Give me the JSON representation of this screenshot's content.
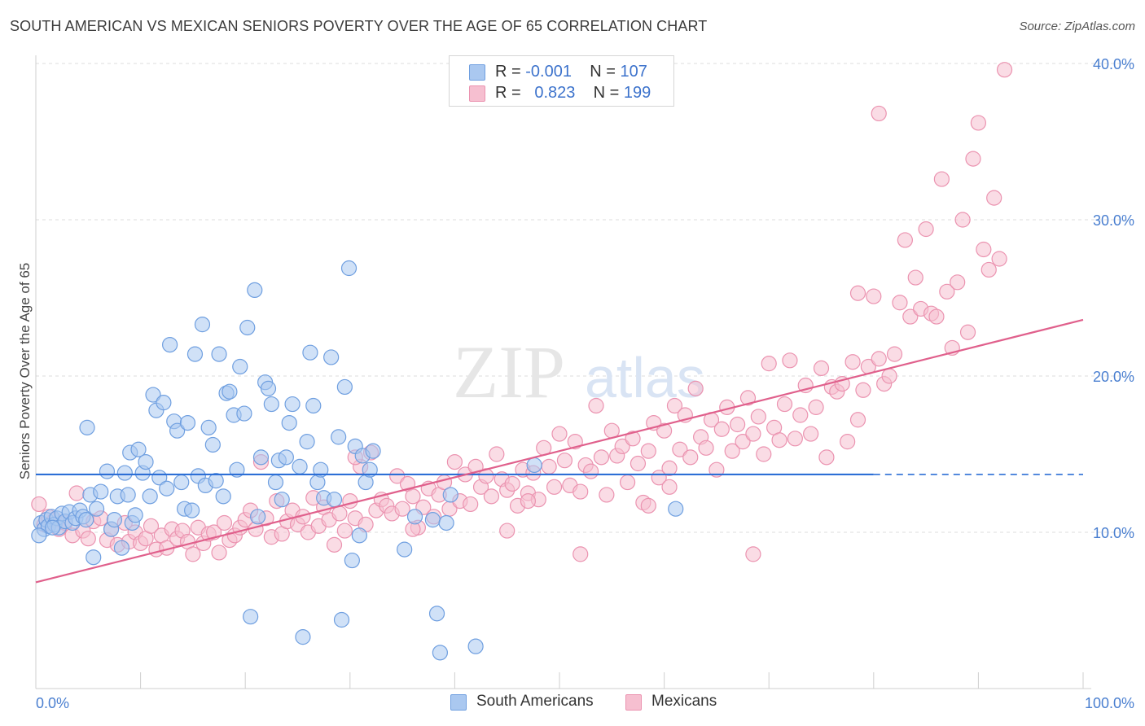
{
  "header": {
    "title": "SOUTH AMERICAN VS MEXICAN SENIORS POVERTY OVER THE AGE OF 65 CORRELATION CHART",
    "source": "Source: ZipAtlas.com"
  },
  "watermark": {
    "part1": "ZIP",
    "part2": "atlas"
  },
  "legend": {
    "south_american": {
      "r_label": "R =",
      "r_value": "-0.001",
      "n_label": "N =",
      "n_value": "107"
    },
    "mexican": {
      "r_label": "R =",
      "r_value": "0.823",
      "n_label": "N =",
      "n_value": "199"
    }
  },
  "bottom_legend": {
    "south_american": "South Americans",
    "mexican": "Mexicans"
  },
  "colors": {
    "blue_fill": "#aac8f0",
    "blue_stroke": "#6f9fe0",
    "blue_line": "#2d6fd6",
    "pink_fill": "#f6bfd0",
    "pink_stroke": "#eb93b0",
    "pink_line": "#e0608c",
    "tick_text": "#4a7fd0",
    "grid": "#dcdcdc"
  },
  "chart_data": {
    "type": "scatter",
    "title": "SOUTH AMERICAN VS MEXICAN SENIORS POVERTY OVER THE AGE OF 65 CORRELATION CHART",
    "xlabel": "",
    "ylabel": "Seniors Poverty Over the Age of 65",
    "xlim": [
      0,
      100
    ],
    "ylim": [
      0,
      40
    ],
    "x_tick_labels": [
      "0.0%",
      "100.0%"
    ],
    "y_ticks": [
      10,
      20,
      30,
      40
    ],
    "y_tick_labels": [
      "10.0%",
      "20.0%",
      "30.0%",
      "40.0%"
    ],
    "grid": true,
    "legend_position": "top-center",
    "series": [
      {
        "name": "South Americans",
        "r": -0.001,
        "n": 107,
        "trend": {
          "x0": 0,
          "y0": 13.7,
          "x1": 80,
          "y1": 13.7,
          "dashed_to": 100
        },
        "points": [
          [
            0.5,
            10.6
          ],
          [
            0.8,
            10.2
          ],
          [
            1.0,
            10.8
          ],
          [
            1.2,
            10.4
          ],
          [
            1.5,
            11.0
          ],
          [
            1.8,
            10.5
          ],
          [
            2.0,
            10.9
          ],
          [
            2.2,
            10.3
          ],
          [
            2.5,
            11.2
          ],
          [
            2.8,
            10.7
          ],
          [
            3.2,
            11.3
          ],
          [
            3.5,
            10.6
          ],
          [
            3.8,
            10.9
          ],
          [
            4.2,
            11.4
          ],
          [
            4.5,
            11.0
          ],
          [
            4.8,
            10.8
          ],
          [
            5.2,
            12.4
          ],
          [
            5.5,
            8.4
          ],
          [
            5.8,
            11.5
          ],
          [
            6.2,
            12.6
          ],
          [
            4.9,
            16.7
          ],
          [
            6.8,
            13.9
          ],
          [
            7.2,
            10.2
          ],
          [
            7.5,
            10.8
          ],
          [
            7.8,
            12.3
          ],
          [
            8.2,
            9.0
          ],
          [
            8.5,
            13.8
          ],
          [
            8.8,
            12.4
          ],
          [
            9.0,
            15.1
          ],
          [
            9.2,
            10.6
          ],
          [
            9.5,
            11.1
          ],
          [
            9.8,
            15.3
          ],
          [
            10.2,
            13.8
          ],
          [
            10.5,
            14.5
          ],
          [
            10.9,
            12.3
          ],
          [
            11.2,
            18.8
          ],
          [
            11.5,
            17.8
          ],
          [
            11.8,
            13.5
          ],
          [
            12.2,
            18.3
          ],
          [
            12.5,
            12.8
          ],
          [
            12.8,
            22.0
          ],
          [
            13.2,
            17.1
          ],
          [
            13.5,
            16.5
          ],
          [
            13.9,
            13.2
          ],
          [
            14.2,
            11.5
          ],
          [
            14.5,
            17.0
          ],
          [
            14.9,
            11.4
          ],
          [
            15.2,
            21.4
          ],
          [
            15.5,
            13.6
          ],
          [
            15.9,
            23.3
          ],
          [
            16.2,
            13.0
          ],
          [
            16.5,
            16.7
          ],
          [
            16.9,
            15.6
          ],
          [
            17.2,
            13.3
          ],
          [
            17.5,
            21.4
          ],
          [
            17.9,
            12.3
          ],
          [
            18.2,
            18.9
          ],
          [
            18.5,
            19.0
          ],
          [
            18.9,
            17.5
          ],
          [
            19.2,
            14.0
          ],
          [
            19.5,
            20.6
          ],
          [
            19.9,
            17.6
          ],
          [
            20.2,
            23.1
          ],
          [
            20.5,
            4.6
          ],
          [
            20.9,
            25.5
          ],
          [
            21.2,
            11.0
          ],
          [
            21.5,
            14.8
          ],
          [
            21.9,
            19.6
          ],
          [
            22.2,
            19.2
          ],
          [
            22.5,
            18.2
          ],
          [
            22.9,
            13.2
          ],
          [
            23.2,
            14.6
          ],
          [
            23.5,
            12.1
          ],
          [
            23.9,
            14.8
          ],
          [
            24.2,
            17.0
          ],
          [
            24.5,
            18.2
          ],
          [
            25.2,
            14.2
          ],
          [
            25.5,
            3.3
          ],
          [
            25.9,
            15.8
          ],
          [
            26.2,
            21.5
          ],
          [
            26.5,
            18.1
          ],
          [
            26.9,
            13.2
          ],
          [
            27.2,
            14.0
          ],
          [
            27.5,
            12.2
          ],
          [
            28.2,
            21.2
          ],
          [
            28.5,
            12.1
          ],
          [
            28.9,
            16.1
          ],
          [
            29.2,
            4.4
          ],
          [
            29.5,
            19.3
          ],
          [
            29.9,
            26.9
          ],
          [
            30.2,
            8.2
          ],
          [
            30.5,
            15.5
          ],
          [
            30.9,
            9.8
          ],
          [
            31.2,
            14.9
          ],
          [
            31.5,
            13.2
          ],
          [
            31.9,
            14.0
          ],
          [
            32.2,
            15.2
          ],
          [
            36.2,
            11.0
          ],
          [
            35.2,
            8.9
          ],
          [
            37.9,
            10.8
          ],
          [
            38.3,
            4.8
          ],
          [
            38.6,
            2.3
          ],
          [
            39.2,
            10.6
          ],
          [
            39.6,
            12.4
          ],
          [
            42.0,
            2.7
          ],
          [
            47.6,
            14.3
          ],
          [
            61.1,
            11.5
          ],
          [
            0.3,
            9.8
          ],
          [
            1.6,
            10.3
          ]
        ]
      },
      {
        "name": "Mexicans",
        "r": 0.823,
        "n": 199,
        "trend": {
          "x0": 0,
          "y0": 6.8,
          "x1": 100,
          "y1": 23.6
        },
        "points": [
          [
            0.3,
            11.8
          ],
          [
            0.8,
            10.5
          ],
          [
            1.2,
            11.0
          ],
          [
            1.8,
            10.8
          ],
          [
            2.2,
            10.2
          ],
          [
            2.8,
            10.6
          ],
          [
            3.5,
            9.8
          ],
          [
            3.9,
            12.5
          ],
          [
            4.5,
            10.1
          ],
          [
            5.0,
            9.6
          ],
          [
            5.5,
            10.7
          ],
          [
            6.2,
            10.9
          ],
          [
            6.8,
            9.5
          ],
          [
            7.2,
            10.2
          ],
          [
            7.8,
            9.2
          ],
          [
            8.5,
            10.6
          ],
          [
            8.9,
            9.4
          ],
          [
            9.5,
            10.0
          ],
          [
            10.0,
            9.3
          ],
          [
            10.5,
            9.6
          ],
          [
            11.0,
            10.4
          ],
          [
            11.5,
            8.9
          ],
          [
            12.0,
            9.8
          ],
          [
            12.5,
            9.0
          ],
          [
            13.0,
            10.2
          ],
          [
            13.5,
            9.6
          ],
          [
            14.0,
            10.1
          ],
          [
            14.5,
            9.4
          ],
          [
            15.0,
            8.6
          ],
          [
            15.5,
            10.3
          ],
          [
            16.0,
            9.3
          ],
          [
            16.5,
            9.9
          ],
          [
            17.0,
            10.0
          ],
          [
            17.5,
            8.7
          ],
          [
            18.0,
            10.6
          ],
          [
            18.5,
            9.5
          ],
          [
            19.0,
            9.8
          ],
          [
            19.5,
            10.3
          ],
          [
            20.0,
            10.8
          ],
          [
            20.5,
            11.4
          ],
          [
            21.0,
            10.2
          ],
          [
            21.5,
            14.5
          ],
          [
            22.0,
            10.9
          ],
          [
            22.5,
            9.7
          ],
          [
            23.0,
            12.0
          ],
          [
            23.5,
            9.9
          ],
          [
            24.0,
            10.7
          ],
          [
            24.5,
            11.4
          ],
          [
            25.0,
            10.5
          ],
          [
            25.5,
            11.0
          ],
          [
            26.0,
            10.0
          ],
          [
            26.5,
            12.2
          ],
          [
            27.0,
            10.4
          ],
          [
            27.5,
            11.6
          ],
          [
            28.0,
            10.8
          ],
          [
            28.5,
            9.2
          ],
          [
            29.0,
            11.2
          ],
          [
            29.5,
            10.1
          ],
          [
            30.0,
            12.0
          ],
          [
            30.5,
            10.9
          ],
          [
            31.0,
            14.2
          ],
          [
            31.5,
            10.5
          ],
          [
            32.0,
            15.1
          ],
          [
            32.5,
            11.4
          ],
          [
            33.0,
            12.1
          ],
          [
            33.5,
            11.7
          ],
          [
            34.0,
            11.2
          ],
          [
            34.5,
            13.6
          ],
          [
            35.0,
            11.5
          ],
          [
            35.5,
            13.1
          ],
          [
            36.0,
            12.3
          ],
          [
            36.5,
            10.3
          ],
          [
            37.0,
            11.6
          ],
          [
            37.5,
            12.8
          ],
          [
            38.0,
            11.0
          ],
          [
            38.5,
            12.4
          ],
          [
            39.0,
            13.2
          ],
          [
            39.5,
            11.5
          ],
          [
            40.0,
            14.5
          ],
          [
            40.5,
            12.0
          ],
          [
            41.0,
            13.7
          ],
          [
            41.5,
            11.8
          ],
          [
            42.0,
            14.2
          ],
          [
            42.5,
            12.9
          ],
          [
            43.0,
            13.6
          ],
          [
            43.5,
            12.3
          ],
          [
            44.0,
            15.0
          ],
          [
            44.5,
            13.4
          ],
          [
            45.0,
            12.7
          ],
          [
            45.5,
            13.1
          ],
          [
            46.0,
            11.7
          ],
          [
            46.5,
            14.0
          ],
          [
            47.0,
            12.5
          ],
          [
            47.5,
            13.8
          ],
          [
            48.0,
            12.1
          ],
          [
            48.5,
            15.4
          ],
          [
            49.0,
            14.2
          ],
          [
            49.5,
            12.9
          ],
          [
            50.0,
            16.3
          ],
          [
            50.5,
            14.6
          ],
          [
            51.0,
            13.0
          ],
          [
            51.5,
            15.8
          ],
          [
            52.0,
            12.6
          ],
          [
            52.5,
            14.3
          ],
          [
            53.0,
            13.9
          ],
          [
            53.5,
            18.1
          ],
          [
            54.0,
            14.8
          ],
          [
            54.5,
            12.4
          ],
          [
            55.0,
            16.5
          ],
          [
            55.5,
            14.9
          ],
          [
            56.0,
            15.5
          ],
          [
            56.5,
            13.2
          ],
          [
            57.0,
            16.0
          ],
          [
            57.5,
            14.4
          ],
          [
            58.0,
            11.9
          ],
          [
            58.5,
            15.2
          ],
          [
            59.0,
            17.0
          ],
          [
            59.5,
            13.5
          ],
          [
            60.0,
            16.5
          ],
          [
            60.5,
            14.1
          ],
          [
            61.0,
            18.1
          ],
          [
            61.5,
            15.3
          ],
          [
            62.0,
            17.5
          ],
          [
            62.5,
            14.8
          ],
          [
            63.0,
            19.2
          ],
          [
            63.5,
            16.1
          ],
          [
            64.0,
            15.4
          ],
          [
            64.5,
            17.2
          ],
          [
            65.0,
            14.0
          ],
          [
            65.5,
            16.6
          ],
          [
            66.0,
            18.0
          ],
          [
            66.5,
            15.2
          ],
          [
            67.0,
            16.9
          ],
          [
            67.5,
            15.8
          ],
          [
            68.0,
            18.6
          ],
          [
            68.5,
            16.3
          ],
          [
            69.0,
            17.4
          ],
          [
            69.5,
            15.0
          ],
          [
            70.0,
            20.8
          ],
          [
            70.5,
            16.7
          ],
          [
            71.0,
            15.9
          ],
          [
            71.5,
            18.2
          ],
          [
            72.0,
            21.0
          ],
          [
            72.5,
            16.0
          ],
          [
            73.0,
            17.5
          ],
          [
            73.5,
            19.4
          ],
          [
            74.0,
            16.3
          ],
          [
            74.5,
            18.0
          ],
          [
            75.0,
            20.5
          ],
          [
            75.5,
            14.8
          ],
          [
            76.0,
            19.3
          ],
          [
            76.5,
            19.0
          ],
          [
            77.0,
            19.5
          ],
          [
            77.5,
            15.8
          ],
          [
            78.0,
            20.9
          ],
          [
            78.5,
            17.2
          ],
          [
            79.0,
            19.1
          ],
          [
            79.5,
            20.6
          ],
          [
            80.0,
            25.1
          ],
          [
            80.5,
            21.1
          ],
          [
            81.0,
            19.5
          ],
          [
            81.5,
            20.0
          ],
          [
            82.0,
            21.4
          ],
          [
            82.5,
            24.7
          ],
          [
            83.0,
            28.7
          ],
          [
            83.5,
            23.8
          ],
          [
            84.0,
            26.3
          ],
          [
            84.5,
            24.3
          ],
          [
            85.0,
            29.4
          ],
          [
            85.5,
            24.0
          ],
          [
            86.0,
            23.8
          ],
          [
            86.5,
            32.6
          ],
          [
            87.0,
            25.4
          ],
          [
            87.5,
            21.8
          ],
          [
            88.0,
            26.0
          ],
          [
            88.5,
            30.0
          ],
          [
            89.0,
            22.8
          ],
          [
            89.5,
            33.9
          ],
          [
            90.0,
            36.2
          ],
          [
            90.5,
            28.1
          ],
          [
            91.0,
            26.8
          ],
          [
            91.5,
            31.4
          ],
          [
            92.0,
            27.5
          ],
          [
            92.5,
            39.6
          ],
          [
            80.5,
            36.8
          ],
          [
            78.5,
            25.3
          ],
          [
            68.5,
            8.6
          ],
          [
            52.0,
            8.6
          ],
          [
            47.0,
            12.0
          ],
          [
            58.5,
            11.7
          ],
          [
            60.5,
            12.9
          ],
          [
            36.0,
            10.2
          ],
          [
            45.0,
            10.1
          ],
          [
            30.5,
            14.8
          ]
        ]
      }
    ]
  }
}
